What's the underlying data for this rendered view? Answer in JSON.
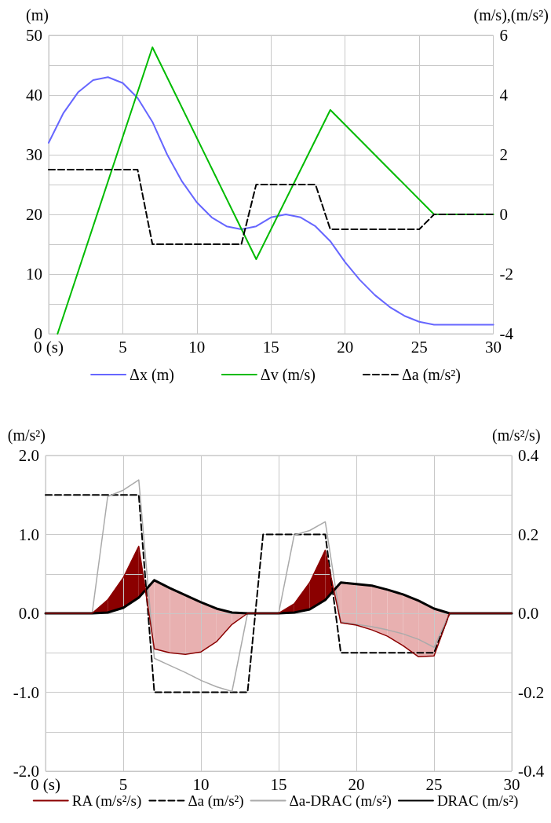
{
  "chart_data": [
    {
      "type": "line",
      "ylabel": "(m)",
      "y2label": "(m/s),(m/s²)",
      "x": [
        0,
        1,
        2,
        3,
        4,
        5,
        6,
        7,
        8,
        9,
        10,
        11,
        12,
        13,
        14,
        15,
        16,
        17,
        18,
        19,
        20,
        21,
        22,
        23,
        24,
        25,
        26,
        27,
        28,
        29,
        30
      ],
      "series": [
        {
          "name": "Δx (m)",
          "color": "#6666ff",
          "values": [
            32,
            37,
            40.5,
            42.5,
            43,
            42,
            39.5,
            35.5,
            30,
            25.5,
            22,
            19.5,
            18,
            17.5,
            18,
            19.5,
            20,
            19.5,
            18,
            15.5,
            12,
            9,
            6.5,
            4.5,
            3,
            2,
            1.5,
            1.5,
            1.5,
            1.5,
            1.5
          ]
        },
        {
          "name": "Δv (m/s)",
          "color": "#00bb00",
          "axis": "y2",
          "x": [
            0.6,
            7,
            14,
            19,
            26,
            30
          ],
          "values": [
            -4,
            5.6,
            -1.5,
            3.5,
            0,
            0
          ]
        },
        {
          "name": "Δa (m/s²)",
          "color": "#000000",
          "axis": "y2",
          "line_style": "dashed",
          "x": [
            0,
            6,
            7,
            13,
            14,
            18,
            19,
            25,
            26,
            30
          ],
          "values": [
            1.5,
            1.5,
            -1,
            -1,
            1,
            1,
            -0.5,
            -0.5,
            0,
            0
          ]
        }
      ],
      "xlim": [
        0,
        30
      ],
      "xticks": [
        {
          "value": 0,
          "label": "0 (s)"
        },
        5,
        10,
        15,
        20,
        25,
        30
      ],
      "ylim": [
        0,
        50
      ],
      "yticks": [
        0,
        {
          "value": 5,
          "label": null
        },
        10,
        {
          "value": 15,
          "label": null
        },
        20,
        {
          "value": 25,
          "label": null
        },
        30,
        {
          "value": 35,
          "label": null
        },
        40,
        {
          "value": 45,
          "label": null
        },
        50
      ],
      "y2lim": [
        -4,
        6
      ],
      "y2ticks": [
        -4,
        -2,
        0,
        2,
        4,
        6
      ],
      "grid": true,
      "legend": "bottom",
      "marker": "none"
    },
    {
      "type": "line",
      "ylabel": "(m/s²)",
      "y2label": "(m/s²/s)",
      "x": [
        0,
        1,
        2,
        3,
        4,
        5,
        6,
        7,
        8,
        9,
        10,
        11,
        12,
        13,
        14,
        15,
        16,
        17,
        18,
        19,
        20,
        21,
        22,
        23,
        24,
        25,
        26,
        27,
        28,
        29,
        30
      ],
      "series": [
        {
          "name": "RA (m/s²/s)",
          "color": "#8b0000",
          "axis": "y2",
          "values": [
            0,
            0,
            0,
            0,
            0.034,
            0.09,
            0.17,
            -0.09,
            -0.1,
            -0.104,
            -0.098,
            -0.072,
            -0.028,
            0,
            0,
            0,
            0.024,
            0.078,
            0.16,
            -0.024,
            -0.03,
            -0.042,
            -0.058,
            -0.082,
            -0.11,
            -0.108,
            0,
            0,
            0,
            0,
            0
          ]
        },
        {
          "name": "Δa (m/s²)",
          "color": "#000000",
          "line_style": "dashed",
          "x": [
            0,
            6,
            7,
            13,
            14,
            18,
            19,
            25,
            26,
            30
          ],
          "values": [
            1.5,
            1.5,
            -1,
            -1,
            1,
            1,
            -0.5,
            -0.5,
            0,
            0
          ]
        },
        {
          "name": "Δa-DRAC (m/s²)",
          "color": "#aaaaaa",
          "values": [
            0,
            0,
            0,
            0,
            1.48,
            1.56,
            1.69,
            -0.57,
            -0.66,
            -0.75,
            -0.85,
            -0.93,
            -0.99,
            0,
            0,
            0,
            0.99,
            1.05,
            1.16,
            -0.11,
            -0.14,
            -0.17,
            -0.21,
            -0.26,
            -0.33,
            -0.43,
            0,
            0,
            0,
            0,
            0
          ]
        },
        {
          "name": "DRAC (m/s²)",
          "color": "#000000",
          "values": [
            0,
            0,
            0,
            0,
            0.01,
            0.07,
            0.2,
            0.42,
            0.32,
            0.23,
            0.14,
            0.06,
            0.01,
            0,
            0,
            0,
            0.01,
            0.05,
            0.17,
            0.39,
            0.37,
            0.35,
            0.3,
            0.24,
            0.16,
            0.06,
            0,
            0,
            0,
            0,
            0
          ]
        }
      ],
      "xlim": [
        0,
        30
      ],
      "xticks": [
        {
          "value": 0,
          "label": "0 (s)"
        },
        5,
        10,
        15,
        20,
        25,
        30
      ],
      "ylim": [
        -2,
        2
      ],
      "yticks": [
        {
          "value": -2,
          "label": "-2.0"
        },
        {
          "value": -1.5,
          "label": null
        },
        {
          "value": -1,
          "label": "-1.0"
        },
        {
          "value": -0.5,
          "label": null
        },
        {
          "value": 0,
          "label": "0.0"
        },
        {
          "value": 0.5,
          "label": null
        },
        {
          "value": 1,
          "label": "1.0"
        },
        {
          "value": 1.5,
          "label": null
        },
        {
          "value": 2,
          "label": "2.0"
        }
      ],
      "y2lim": [
        -0.4,
        0.4
      ],
      "y2ticks": [
        -0.4,
        -0.2,
        {
          "value": 0,
          "label": "0.0"
        },
        0.2,
        0.4
      ],
      "grid": true,
      "legend": "bottom",
      "marker": "none"
    }
  ]
}
